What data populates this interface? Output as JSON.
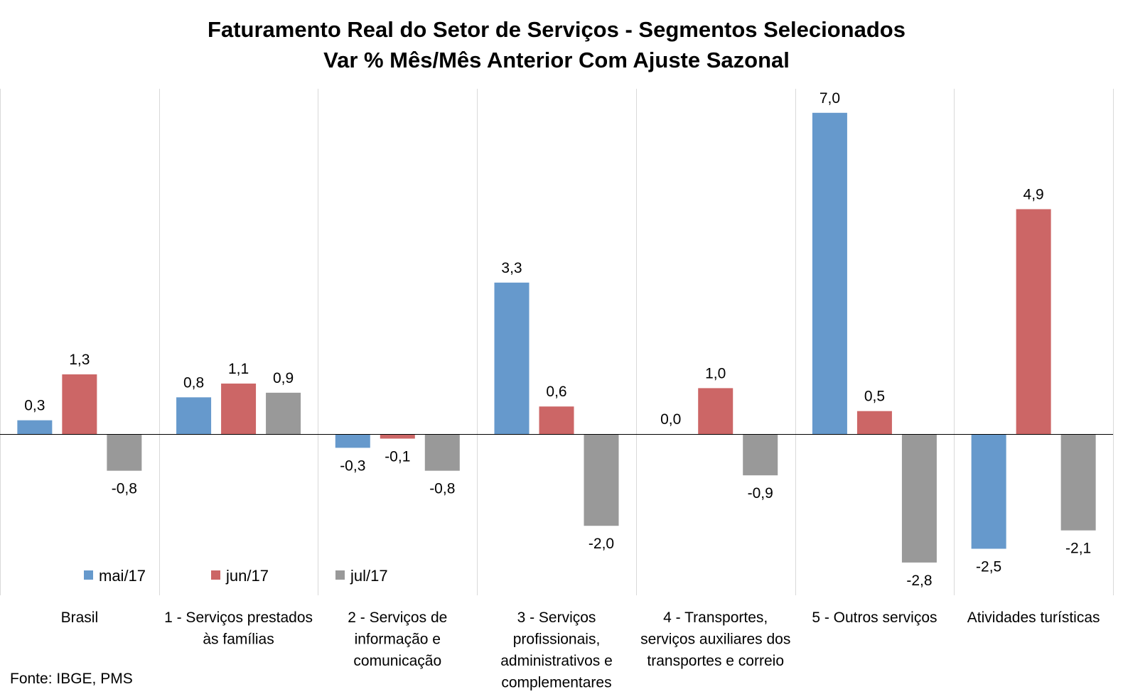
{
  "chart_data": {
    "type": "bar",
    "title": "Faturamento Real do Setor de Serviços - Segmentos Selecionados",
    "subtitle": "Var % Mês/Mês Anterior Com Ajuste Sazonal",
    "categories": [
      [
        "Brasil"
      ],
      [
        "1 - Serviços prestados",
        "às famílias"
      ],
      [
        "2 - Serviços de",
        "informação e",
        "comunicação"
      ],
      [
        "3 - Serviços",
        "profissionais,",
        "administrativos e",
        "complementares"
      ],
      [
        "4 - Transportes,",
        "serviços auxiliares dos",
        "transportes e correio"
      ],
      [
        "5 - Outros serviços"
      ],
      [
        "Atividades turísticas"
      ]
    ],
    "series": [
      {
        "name": "mai/17",
        "color": "#6699cc",
        "values": [
          0.3,
          0.8,
          -0.3,
          3.3,
          0.0,
          7.0,
          -2.5
        ],
        "labels": [
          "0,3",
          "0,8",
          "-0,3",
          "3,3",
          "0,0",
          "7,0",
          "-2,5"
        ]
      },
      {
        "name": "jun/17",
        "color": "#cc6666",
        "values": [
          1.3,
          1.1,
          -0.1,
          0.6,
          1.0,
          0.5,
          4.9
        ],
        "labels": [
          "1,3",
          "1,1",
          "-0,1",
          "0,6",
          "1,0",
          "0,5",
          "4,9"
        ]
      },
      {
        "name": "jul/17",
        "color": "#999999",
        "values": [
          -0.8,
          0.9,
          -0.8,
          -2.0,
          -0.9,
          -2.8,
          -2.1
        ],
        "labels": [
          "-0,8",
          "0,9",
          "-0,8",
          "-2,0",
          "-0,9",
          "-2,8",
          "-2,1"
        ]
      }
    ],
    "ylim": [
      -3.5,
      7.5
    ],
    "grid": "vertical category separators",
    "legend": "bottom-left",
    "xlabel": "",
    "ylabel": ""
  },
  "source": "Fonte: IBGE, PMS"
}
